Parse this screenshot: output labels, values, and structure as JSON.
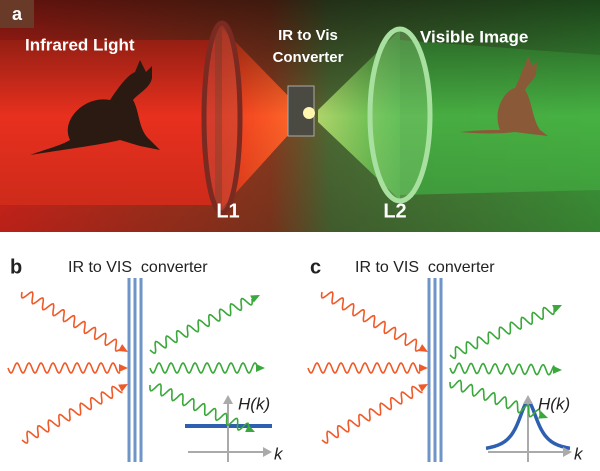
{
  "panel_a": {
    "label": "a",
    "infrared_label": "Infrared Light",
    "converter_label": [
      "IR to Vis",
      "Converter"
    ],
    "visible_label": "Visible Image",
    "lens_1": "L1",
    "lens_2": "L2"
  },
  "panel_b": {
    "label": "b",
    "converter_label": "IR to VIS  converter",
    "y_axis_label": "H(k)",
    "x_axis_label": "k"
  },
  "panel_c": {
    "label": "c",
    "converter_label": "IR to VIS  converter",
    "y_axis_label": "H(k)",
    "x_axis_label": "k"
  }
}
